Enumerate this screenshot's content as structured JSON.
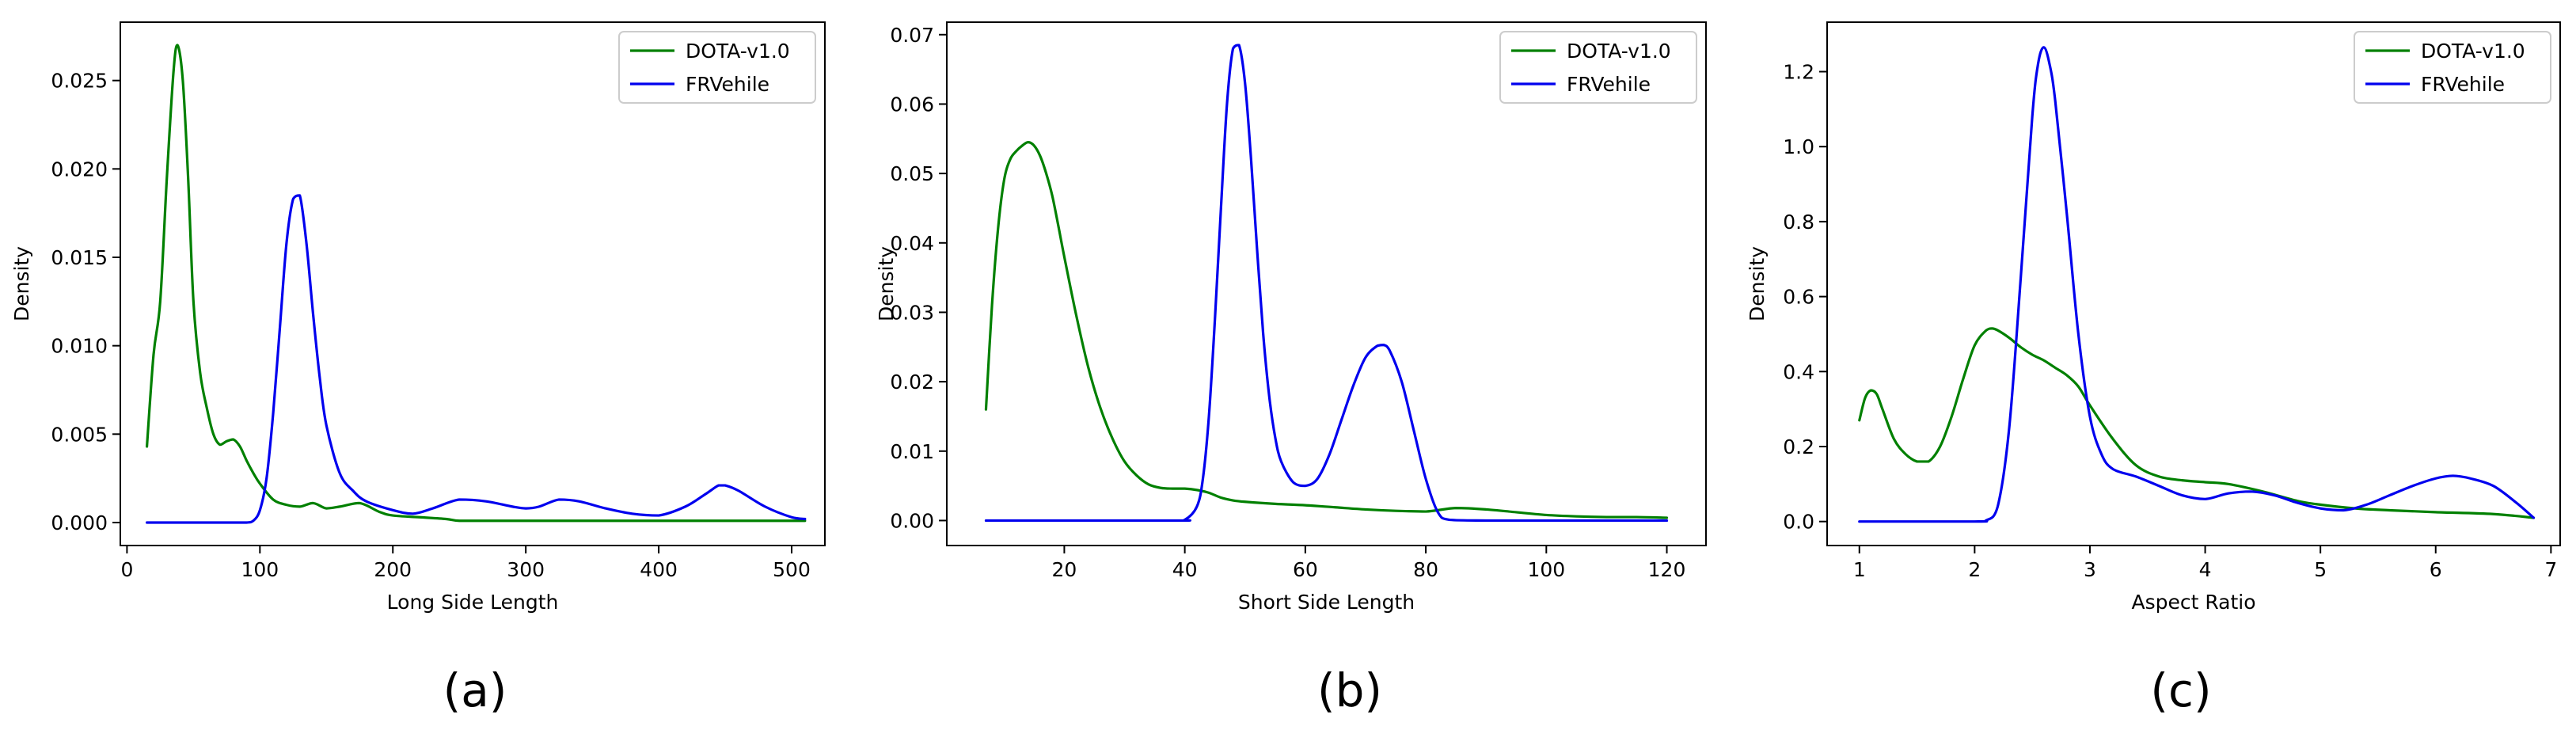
{
  "chart_data": [
    {
      "type": "line",
      "panel_label": "(a)",
      "xlabel": "Long Side Length",
      "ylabel": "Density",
      "xlim": [
        -5,
        525
      ],
      "ylim": [
        -0.0013,
        0.0283
      ],
      "xticks": [
        0,
        100,
        200,
        300,
        400,
        500
      ],
      "xtick_labels": [
        "0",
        "100",
        "200",
        "300",
        "400",
        "500"
      ],
      "yticks": [
        0,
        0.005,
        0.01,
        0.015,
        0.02,
        0.025
      ],
      "ytick_labels": [
        "0.000",
        "0.005",
        "0.010",
        "0.015",
        "0.020",
        "0.025"
      ],
      "legend": {
        "position": "top-right",
        "entries": [
          "DOTA-v1.0",
          "FRVehile"
        ]
      },
      "series": [
        {
          "name": "DOTA-v1.0",
          "color": "#008000",
          "x": [
            15,
            20,
            25,
            30,
            35,
            38,
            42,
            46,
            50,
            55,
            60,
            65,
            70,
            75,
            80,
            85,
            90,
            95,
            100,
            110,
            120,
            130,
            140,
            150,
            160,
            175,
            190,
            200,
            220,
            240,
            250,
            270,
            300,
            350,
            400,
            450,
            510
          ],
          "y": [
            0.0043,
            0.0095,
            0.0125,
            0.0195,
            0.0255,
            0.027,
            0.025,
            0.0195,
            0.0125,
            0.0085,
            0.0065,
            0.005,
            0.0044,
            0.0046,
            0.0047,
            0.0043,
            0.0035,
            0.0028,
            0.0022,
            0.0013,
            0.001,
            0.0009,
            0.0011,
            0.0008,
            0.0009,
            0.0011,
            0.0006,
            0.0004,
            0.0003,
            0.0002,
            0.0001,
            0.0001,
            0.0001,
            0.0001,
            0.0001,
            0.0001,
            0.0001
          ]
        },
        {
          "name": "FRVehile",
          "color": "#0000ee",
          "x": [
            15,
            80,
            90,
            95,
            100,
            105,
            110,
            115,
            120,
            125,
            130,
            135,
            140,
            145,
            150,
            160,
            170,
            180,
            200,
            215,
            230,
            250,
            270,
            290,
            300,
            310,
            325,
            340,
            360,
            380,
            400,
            420,
            435,
            445,
            450,
            460,
            480,
            500,
            510
          ],
          "y": [
            0,
            0,
            0,
            0.0001,
            0.0007,
            0.0025,
            0.0062,
            0.011,
            0.0158,
            0.0183,
            0.0185,
            0.0158,
            0.0118,
            0.0082,
            0.0055,
            0.0028,
            0.0018,
            0.0012,
            0.0007,
            0.0005,
            0.0008,
            0.0013,
            0.0012,
            0.0009,
            0.0008,
            0.0009,
            0.0013,
            0.0012,
            0.0008,
            0.0005,
            0.0004,
            0.0009,
            0.0016,
            0.0021,
            0.0021,
            0.0018,
            0.0009,
            0.0003,
            0.0002
          ]
        }
      ]
    },
    {
      "type": "line",
      "panel_label": "(b)",
      "xlabel": "Short Side Length",
      "ylabel": "Density",
      "xlim": [
        0.5,
        126.5
      ],
      "ylim": [
        -0.0036,
        0.0718
      ],
      "xticks": [
        20,
        40,
        60,
        80,
        100,
        120
      ],
      "xtick_labels": [
        "20",
        "40",
        "60",
        "80",
        "100",
        "120"
      ],
      "yticks": [
        0,
        0.01,
        0.02,
        0.03,
        0.04,
        0.05,
        0.06,
        0.07
      ],
      "ytick_labels": [
        "0.00",
        "0.01",
        "0.02",
        "0.03",
        "0.04",
        "0.05",
        "0.06",
        "0.07"
      ],
      "legend": {
        "position": "top-right",
        "entries": [
          "DOTA-v1.0",
          "FRVehile"
        ]
      },
      "series": [
        {
          "name": "DOTA-v1.0",
          "color": "#008000",
          "x": [
            7,
            8,
            9,
            10,
            11,
            12,
            13,
            14,
            15,
            16,
            17,
            18,
            19,
            20,
            22,
            24,
            26,
            28,
            30,
            32,
            34,
            36,
            38,
            40,
            42,
            44,
            46,
            48,
            50,
            55,
            60,
            65,
            70,
            75,
            80,
            85,
            90,
            95,
            100,
            105,
            110,
            115,
            120
          ],
          "y": [
            0.016,
            0.031,
            0.042,
            0.049,
            0.052,
            0.0532,
            0.054,
            0.0545,
            0.054,
            0.0525,
            0.05,
            0.0468,
            0.0425,
            0.038,
            0.0295,
            0.022,
            0.0162,
            0.0118,
            0.0085,
            0.0065,
            0.0052,
            0.0047,
            0.0046,
            0.0046,
            0.0044,
            0.004,
            0.0033,
            0.0029,
            0.0027,
            0.0024,
            0.0022,
            0.0019,
            0.0016,
            0.0014,
            0.0013,
            0.0018,
            0.0016,
            0.0012,
            0.0008,
            0.0006,
            0.0005,
            0.0005,
            0.0004
          ]
        },
        {
          "name": "FRVehile",
          "color": "#0000ee",
          "x": [
            7,
            38,
            40,
            42,
            43,
            44,
            45,
            46,
            47,
            48,
            49,
            50,
            51,
            52,
            53,
            54,
            55,
            56,
            58,
            60,
            62,
            64,
            66,
            68,
            70,
            72,
            73,
            74,
            76,
            78,
            80,
            82,
            84,
            90,
            100,
            110,
            120
          ],
          "y": [
            0,
            0,
            0.0001,
            0.002,
            0.006,
            0.015,
            0.029,
            0.045,
            0.06,
            0.068,
            0.0685,
            0.063,
            0.052,
            0.039,
            0.027,
            0.018,
            0.012,
            0.0085,
            0.0055,
            0.005,
            0.006,
            0.0095,
            0.0145,
            0.0195,
            0.0235,
            0.0252,
            0.0253,
            0.0245,
            0.02,
            0.013,
            0.006,
            0.0012,
            0.0001,
            0,
            0,
            0,
            0
          ]
        }
      ]
    },
    {
      "type": "line",
      "panel_label": "(c)",
      "xlabel": "Aspect Ratio",
      "ylabel": "Density",
      "xlim": [
        0.72,
        7.08
      ],
      "ylim": [
        -0.064,
        1.332
      ],
      "xticks": [
        1,
        2,
        3,
        4,
        5,
        6,
        7
      ],
      "xtick_labels": [
        "1",
        "2",
        "3",
        "4",
        "5",
        "6",
        "7"
      ],
      "yticks": [
        0,
        0.2,
        0.4,
        0.6,
        0.8,
        1.0,
        1.2
      ],
      "ytick_labels": [
        "0.0",
        "0.2",
        "0.4",
        "0.6",
        "0.8",
        "1.0",
        "1.2"
      ],
      "legend": {
        "position": "top-right",
        "entries": [
          "DOTA-v1.0",
          "FRVehile"
        ]
      },
      "series": [
        {
          "name": "DOTA-v1.0",
          "color": "#008000",
          "x": [
            1.0,
            1.05,
            1.1,
            1.15,
            1.2,
            1.3,
            1.4,
            1.5,
            1.6,
            1.7,
            1.8,
            1.9,
            2.0,
            2.1,
            2.15,
            2.2,
            2.3,
            2.4,
            2.5,
            2.6,
            2.7,
            2.8,
            2.9,
            3.0,
            3.2,
            3.4,
            3.6,
            3.8,
            4.0,
            4.2,
            4.5,
            4.8,
            5.0,
            5.3,
            5.6,
            6.0,
            6.5,
            6.85
          ],
          "y": [
            0.27,
            0.33,
            0.35,
            0.34,
            0.3,
            0.22,
            0.18,
            0.16,
            0.16,
            0.2,
            0.28,
            0.38,
            0.47,
            0.51,
            0.515,
            0.51,
            0.49,
            0.465,
            0.445,
            0.43,
            0.41,
            0.39,
            0.36,
            0.31,
            0.22,
            0.15,
            0.12,
            0.11,
            0.105,
            0.1,
            0.08,
            0.055,
            0.045,
            0.035,
            0.03,
            0.025,
            0.02,
            0.01
          ]
        },
        {
          "name": "FRVehile",
          "color": "#0000ee",
          "x": [
            1.0,
            2.0,
            2.1,
            2.2,
            2.3,
            2.4,
            2.5,
            2.55,
            2.6,
            2.65,
            2.7,
            2.8,
            2.9,
            3.0,
            3.1,
            3.2,
            3.4,
            3.6,
            3.8,
            4.0,
            4.2,
            4.4,
            4.6,
            4.8,
            5.0,
            5.2,
            5.4,
            5.6,
            5.8,
            6.0,
            6.15,
            6.3,
            6.5,
            6.7,
            6.85
          ],
          "y": [
            0,
            0,
            0.003,
            0.04,
            0.25,
            0.65,
            1.08,
            1.22,
            1.265,
            1.22,
            1.12,
            0.82,
            0.5,
            0.28,
            0.18,
            0.14,
            0.12,
            0.095,
            0.07,
            0.06,
            0.075,
            0.08,
            0.07,
            0.05,
            0.035,
            0.03,
            0.045,
            0.07,
            0.095,
            0.115,
            0.122,
            0.115,
            0.095,
            0.05,
            0.01
          ]
        }
      ]
    }
  ]
}
